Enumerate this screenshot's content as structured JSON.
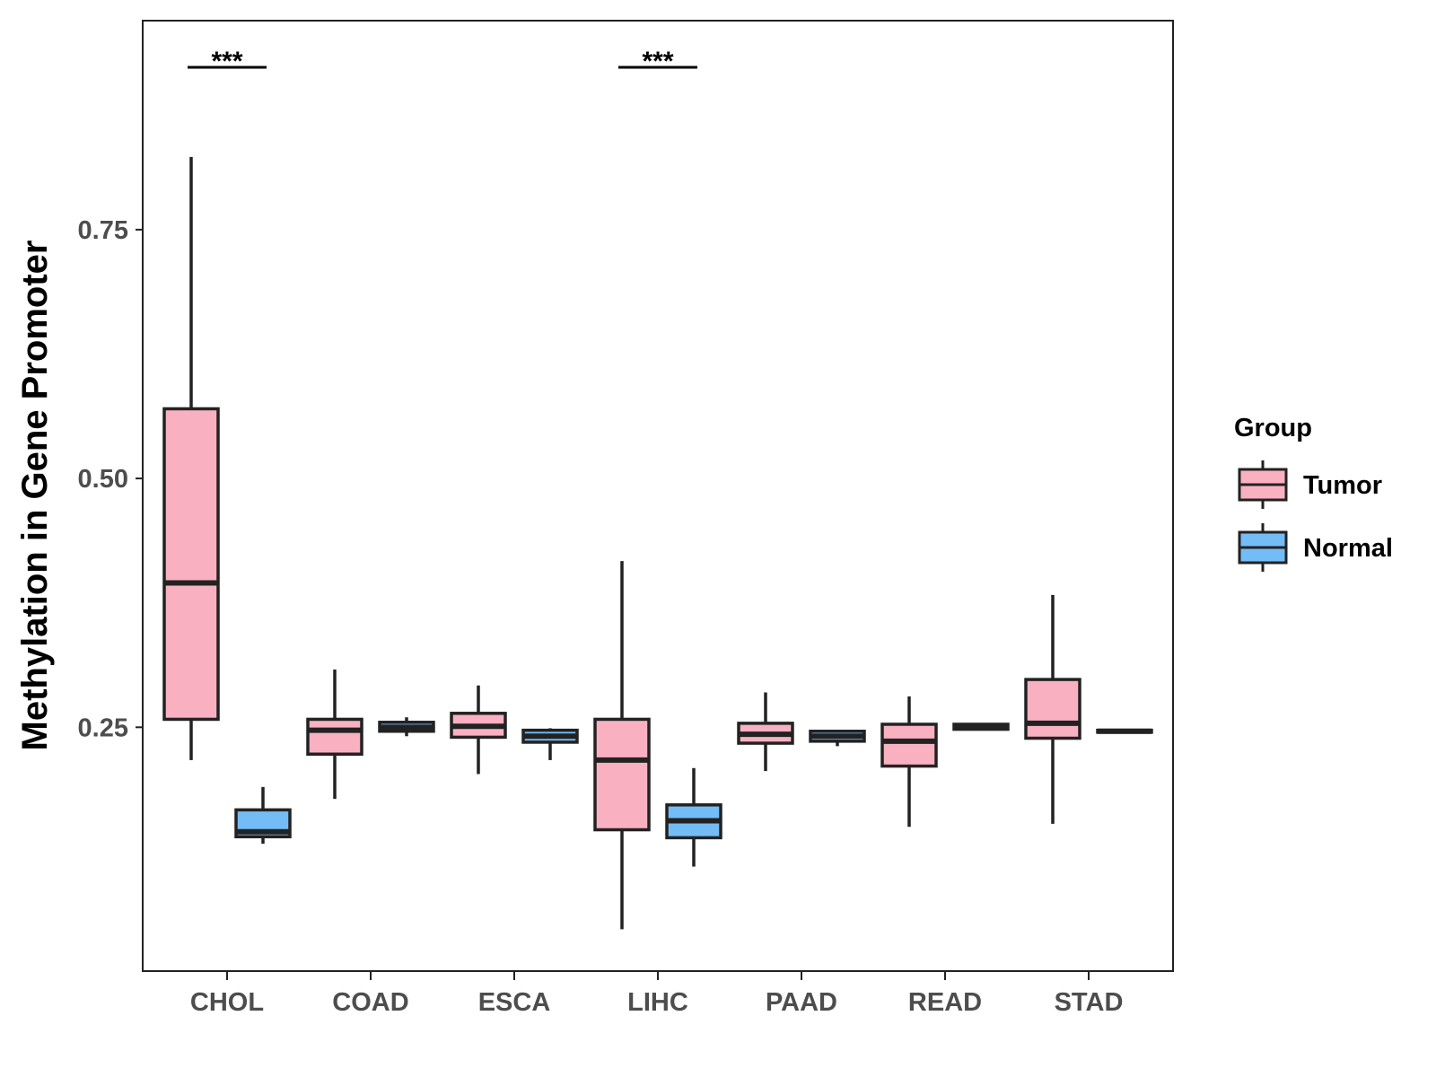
{
  "chart_data": {
    "type": "box",
    "title": "",
    "xlabel": "",
    "ylabel": "Methylation in Gene Promoter",
    "ylim": [
      0.005,
      0.96
    ],
    "y_ticks": [
      0.25,
      0.5,
      0.75
    ],
    "y_tick_labels": [
      "0.25",
      "0.50",
      "0.75"
    ],
    "categories": [
      "CHOL",
      "COAD",
      "ESCA",
      "LIHC",
      "PAAD",
      "READ",
      "STAD"
    ],
    "legend": {
      "title": "Group",
      "position": "right",
      "entries": [
        {
          "name": "Tumor",
          "color": "#F9B1C2"
        },
        {
          "name": "Normal",
          "color": "#74BCF6"
        }
      ]
    },
    "series": [
      {
        "name": "Tumor",
        "color": "#F9B1C2",
        "boxes": [
          {
            "category": "CHOL",
            "whisker_low": 0.217,
            "q1": 0.258,
            "median": 0.395,
            "q3": 0.57,
            "whisker_high": 0.823
          },
          {
            "category": "COAD",
            "whisker_low": 0.178,
            "q1": 0.223,
            "median": 0.247,
            "q3": 0.258,
            "whisker_high": 0.308
          },
          {
            "category": "ESCA",
            "whisker_low": 0.203,
            "q1": 0.24,
            "median": 0.251,
            "q3": 0.264,
            "whisker_high": 0.292
          },
          {
            "category": "LIHC",
            "whisker_low": 0.047,
            "q1": 0.147,
            "median": 0.217,
            "q3": 0.258,
            "whisker_high": 0.417
          },
          {
            "category": "PAAD",
            "whisker_low": 0.206,
            "q1": 0.234,
            "median": 0.243,
            "q3": 0.254,
            "whisker_high": 0.285
          },
          {
            "category": "READ",
            "whisker_low": 0.15,
            "q1": 0.211,
            "median": 0.236,
            "q3": 0.253,
            "whisker_high": 0.281
          },
          {
            "category": "STAD",
            "whisker_low": 0.153,
            "q1": 0.239,
            "median": 0.254,
            "q3": 0.298,
            "whisker_high": 0.383
          }
        ]
      },
      {
        "name": "Normal",
        "color": "#74BCF6",
        "boxes": [
          {
            "category": "CHOL",
            "whisker_low": 0.133,
            "q1": 0.14,
            "median": 0.145,
            "q3": 0.167,
            "whisker_high": 0.19
          },
          {
            "category": "COAD",
            "whisker_low": 0.241,
            "q1": 0.246,
            "median": 0.25,
            "q3": 0.255,
            "whisker_high": 0.26
          },
          {
            "category": "ESCA",
            "whisker_low": 0.217,
            "q1": 0.235,
            "median": 0.241,
            "q3": 0.247,
            "whisker_high": 0.249
          },
          {
            "category": "LIHC",
            "whisker_low": 0.11,
            "q1": 0.139,
            "median": 0.156,
            "q3": 0.172,
            "whisker_high": 0.209
          },
          {
            "category": "PAAD",
            "whisker_low": 0.231,
            "q1": 0.236,
            "median": 0.241,
            "q3": 0.246,
            "whisker_high": 0.247
          },
          {
            "category": "READ",
            "whisker_low": 0.248,
            "q1": 0.248,
            "median": 0.251,
            "q3": 0.253,
            "whisker_high": 0.253
          },
          {
            "category": "STAD",
            "whisker_low": 0.245,
            "q1": 0.245,
            "median": 0.246,
            "q3": 0.247,
            "whisker_high": 0.247
          }
        ]
      }
    ],
    "annotations": [
      {
        "category": "CHOL",
        "text": "***"
      },
      {
        "category": "LIHC",
        "text": "***"
      }
    ]
  }
}
